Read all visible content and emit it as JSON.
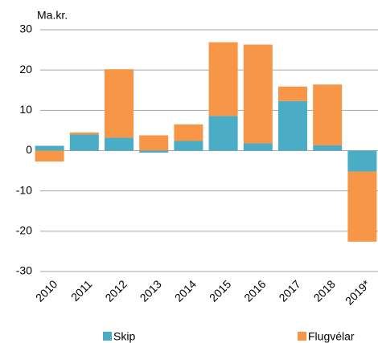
{
  "chart_data": {
    "type": "stacked_bar",
    "y_axis_label": "Ma.kr.",
    "categories": [
      "2010",
      "2011",
      "2012",
      "2013",
      "2014",
      "2015",
      "2016",
      "2017",
      "2018",
      "2019*"
    ],
    "series": [
      {
        "name": "Skip",
        "color": "#4bacc6",
        "values": [
          1.2,
          4.0,
          3.2,
          -0.5,
          2.4,
          8.6,
          1.8,
          12.3,
          1.3,
          -5.2
        ]
      },
      {
        "name": "Flugvélar",
        "color": "#f79646",
        "values": [
          -2.7,
          0.5,
          17.0,
          3.8,
          4.1,
          18.3,
          24.5,
          3.6,
          15.1,
          -17.4
        ]
      }
    ],
    "ylim": [
      -30,
      30
    ],
    "yticks": [
      -30,
      -20,
      -10,
      0,
      10,
      20,
      30
    ],
    "grid": true
  }
}
